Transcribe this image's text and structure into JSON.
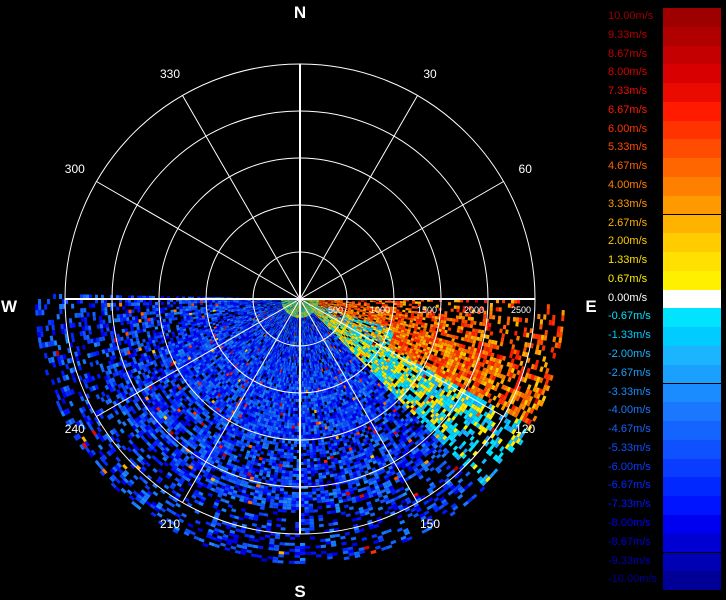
{
  "compass": {
    "north": "N",
    "south": "S",
    "east": "E",
    "west": "W"
  },
  "azimuth_labels": [
    {
      "deg": 30,
      "text": "30"
    },
    {
      "deg": 60,
      "text": "60"
    },
    {
      "deg": 120,
      "text": "120"
    },
    {
      "deg": 150,
      "text": "150"
    },
    {
      "deg": 210,
      "text": "210"
    },
    {
      "deg": 240,
      "text": "240"
    },
    {
      "deg": 300,
      "text": "300"
    },
    {
      "deg": 330,
      "text": "330"
    }
  ],
  "range_labels": [
    "500",
    "1000",
    "1500",
    "2000",
    "2500"
  ],
  "range_max": 2500,
  "legend": [
    {
      "label": "10.00m/s",
      "color": "#9e0000"
    },
    {
      "label": "9.33m/s",
      "color": "#b00000"
    },
    {
      "label": "8.67m/s",
      "color": "#c40000"
    },
    {
      "label": "8.00m/s",
      "color": "#d80000"
    },
    {
      "label": "7.33m/s",
      "color": "#ea0a00"
    },
    {
      "label": "6.67m/s",
      "color": "#ff1a00"
    },
    {
      "label": "6.00m/s",
      "color": "#ff3300"
    },
    {
      "label": "5.33m/s",
      "color": "#ff4c00"
    },
    {
      "label": "4.67m/s",
      "color": "#ff6600"
    },
    {
      "label": "4.00m/s",
      "color": "#ff7f00"
    },
    {
      "label": "3.33m/s",
      "color": "#ff9900"
    },
    {
      "label": "2.67m/s",
      "color": "#ffb200"
    },
    {
      "label": "2.00m/s",
      "color": "#ffcc00"
    },
    {
      "label": "1.33m/s",
      "color": "#ffe000"
    },
    {
      "label": "0.67m/s",
      "color": "#fff000"
    },
    {
      "label": "0.00m/s",
      "color": "#ffffff"
    },
    {
      "label": "-0.67m/s",
      "color": "#00e4ff"
    },
    {
      "label": "-1.33m/s",
      "color": "#00ccff"
    },
    {
      "label": "-2.00m/s",
      "color": "#1ab4ff"
    },
    {
      "label": "-2.67m/s",
      "color": "#1aa0ff"
    },
    {
      "label": "-3.33m/s",
      "color": "#1a8cff"
    },
    {
      "label": "-4.00m/s",
      "color": "#1a78ff"
    },
    {
      "label": "-4.67m/s",
      "color": "#1464ff"
    },
    {
      "label": "-5.33m/s",
      "color": "#0f50ff"
    },
    {
      "label": "-6.00m/s",
      "color": "#0a3cff"
    },
    {
      "label": "-6.67m/s",
      "color": "#0028ff"
    },
    {
      "label": "-7.33m/s",
      "color": "#0014ff"
    },
    {
      "label": "-8.00m/s",
      "color": "#0000f0"
    },
    {
      "label": "-8.67m/s",
      "color": "#0000d2"
    },
    {
      "label": "-9.33m/s",
      "color": "#0000b4"
    },
    {
      "label": "-10.00m/s",
      "color": "#000096"
    }
  ]
}
